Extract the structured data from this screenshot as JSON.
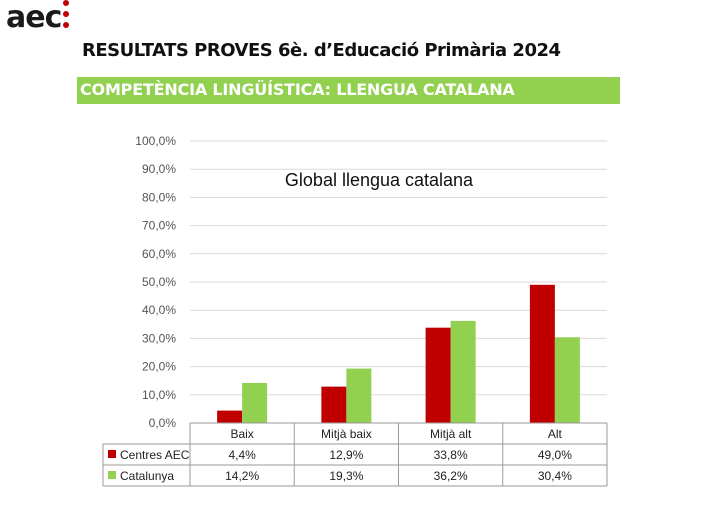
{
  "header": {
    "logo_text": "aec",
    "title": "RESULTATS PROVES 6è. d’Educació Primària 2024",
    "section": "COMPETÈNCIA LINGÜÍSTICA: LLENGUA CATALANA"
  },
  "chart_data": {
    "type": "bar",
    "title": "Global llengua catalana",
    "categories": [
      "Baix",
      "Mitjà baix",
      "Mitjà alt",
      "Alt"
    ],
    "series": [
      {
        "name": "Centres AEC",
        "values": [
          4.4,
          12.9,
          33.8,
          49.0
        ],
        "labels": [
          "4,4%",
          "12,9%",
          "33,8%",
          "49,0%"
        ],
        "color": "#c00000"
      },
      {
        "name": "Catalunya",
        "values": [
          14.2,
          19.3,
          36.2,
          30.4
        ],
        "labels": [
          "14,2%",
          "19,3%",
          "36,2%",
          "30,4%"
        ],
        "color": "#92d050"
      }
    ],
    "ylim": [
      0,
      100
    ],
    "yticks": [
      "0,0%",
      "10,0%",
      "20,0%",
      "30,0%",
      "40,0%",
      "50,0%",
      "60,0%",
      "70,0%",
      "80,0%",
      "90,0%",
      "100,0%"
    ],
    "grid": true,
    "legend": "data-table"
  }
}
